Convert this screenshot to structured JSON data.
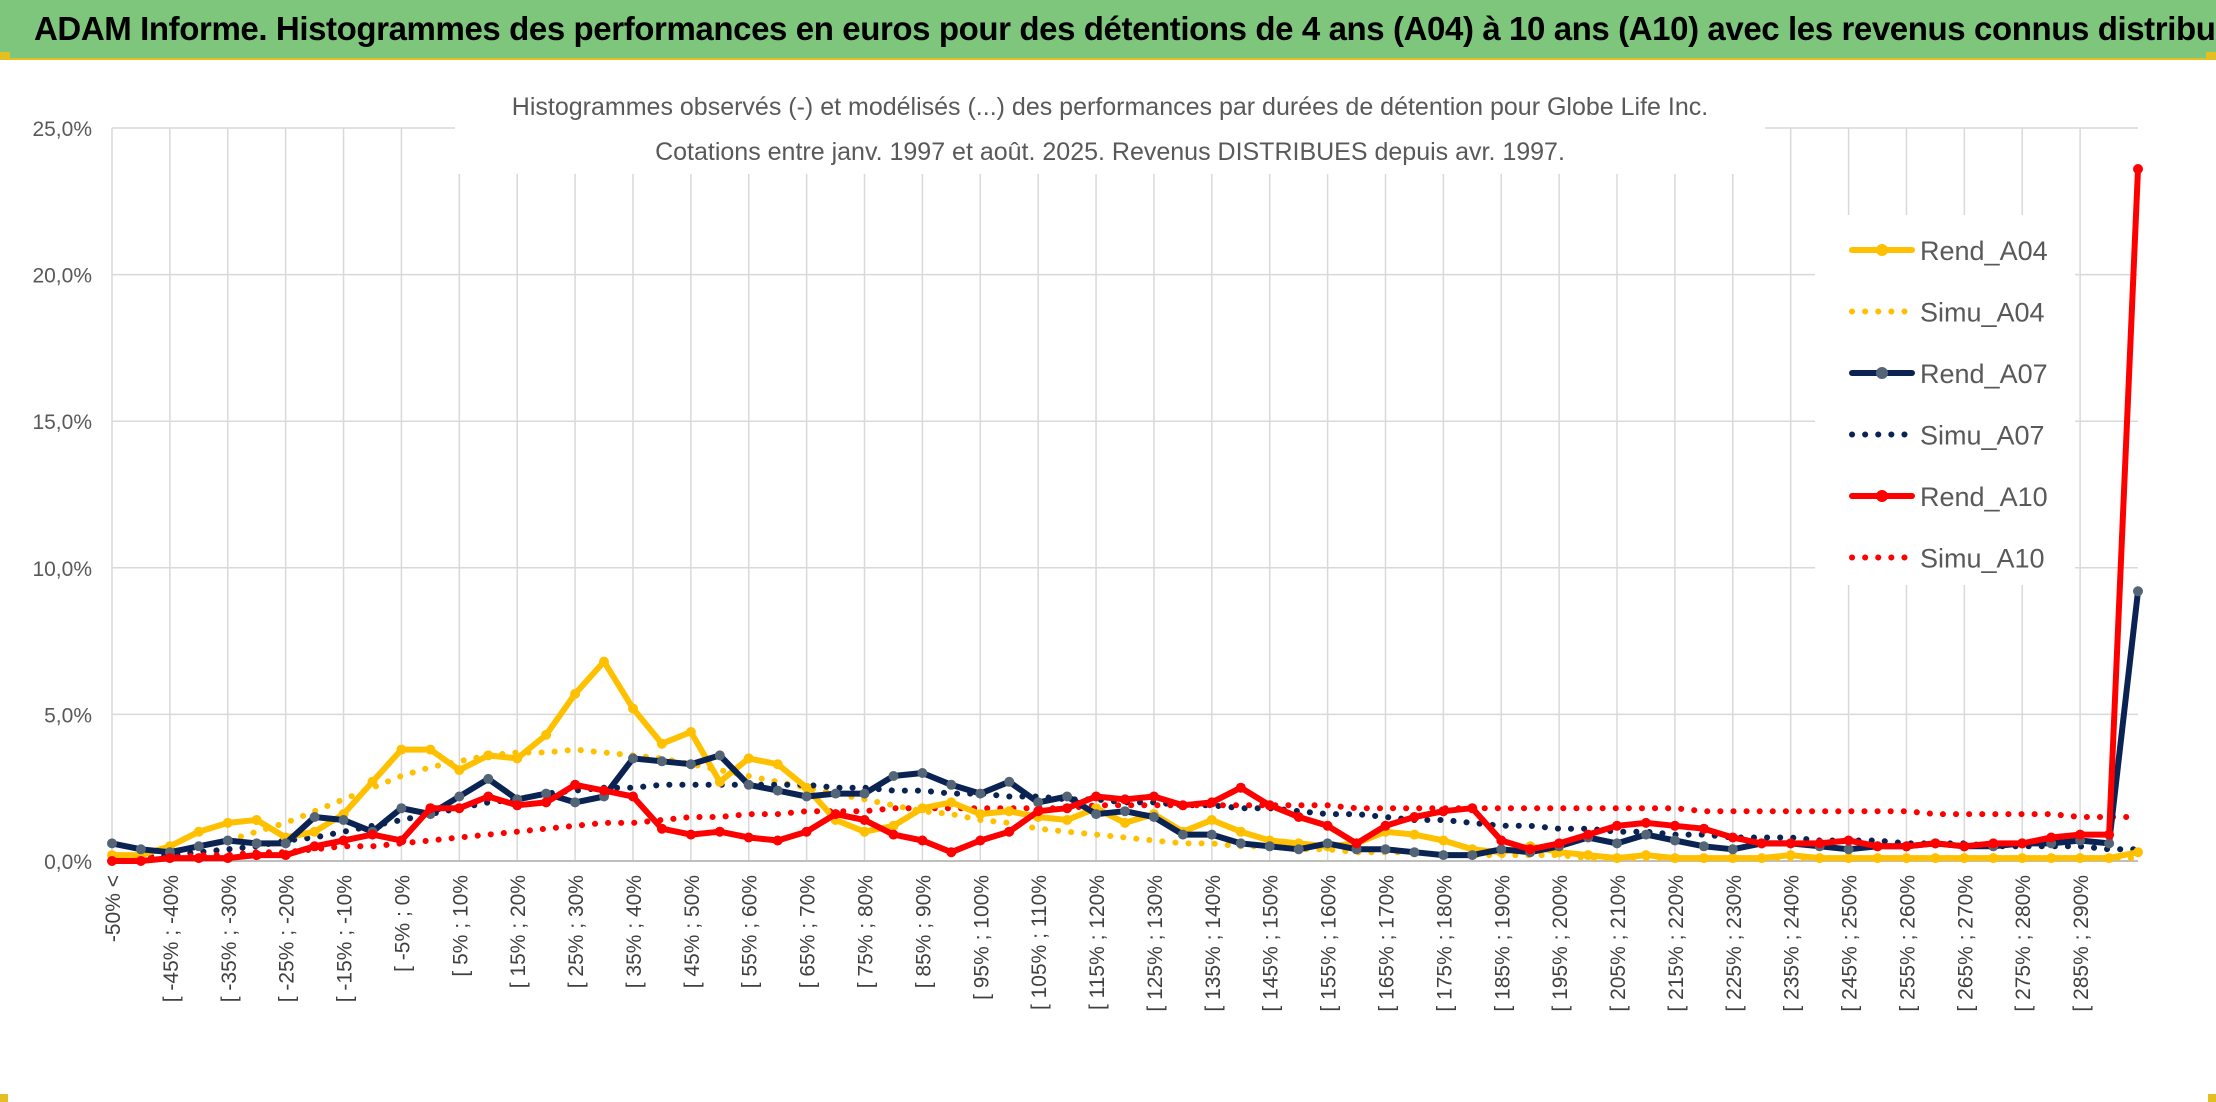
{
  "header": {
    "title": "ADAM Informe. Histogrammes des performances en euros pour des détentions de 4 ans (A04) à 10 ans (A10) avec les revenus connus distribués"
  },
  "colors": {
    "header_bg": "#7dc67b",
    "accent": "#e3bf21",
    "A04": "#ffc000",
    "A07": "#0b2352",
    "A07_marker": "#536577",
    "A10": "#ff0000"
  },
  "chart_data": {
    "type": "line",
    "title": "Histogrammes observés (-) et modélisés (...) des performances par durées de détention pour Globe Life Inc.",
    "subtitle": "Cotations entre janv. 1997 et août. 2025. Revenus DISTRIBUES depuis avr. 1997.",
    "ylim": [
      0,
      25
    ],
    "yticks": [
      "0,0%",
      "5,0%",
      "10,0%",
      "15,0%",
      "20,0%",
      "25,0%"
    ],
    "grid": true,
    "legend_position": "right",
    "category_labels": [
      "-50% <",
      "[ -45% ; -40%",
      "[ -35% ; -30%",
      "[ -25% ; -20%",
      "[ -15% ; -10%",
      "[ -5% ; 0%",
      "[ 5% ; 10%",
      "[ 15% ; 20%",
      "[ 25% ; 30%",
      "[ 35% ; 40%",
      "[ 45% ; 50%",
      "[ 55% ; 60%",
      "[ 65% ; 70%",
      "[ 75% ; 80%",
      "[ 85% ; 90%",
      "[ 95% ; 100%",
      "[ 105% ; 110%",
      "[ 115% ; 120%",
      "[ 125% ; 130%",
      "[ 135% ; 140%",
      "[ 145% ; 150%",
      "[ 155% ; 160%",
      "[ 165% ; 170%",
      "[ 175% ; 180%",
      "[ 185% ; 190%",
      "[ 195% ; 200%",
      "[ 205% ; 210%",
      "[ 215% ; 220%",
      "[ 225% ; 230%",
      "[ 235% ; 240%",
      "[ 245% ; 250%",
      "[ 255% ; 260%",
      "[ 265% ; 270%",
      "[ 275% ; 280%",
      "[ 285% ; 290%"
    ],
    "series": [
      {
        "name": "Rend_A04",
        "style": "solid",
        "color": "#ffc000",
        "marker": true,
        "values": [
          0.2,
          0.2,
          0.5,
          1.0,
          1.3,
          1.4,
          0.8,
          1.0,
          1.6,
          2.7,
          3.8,
          3.8,
          3.1,
          3.6,
          3.5,
          4.3,
          5.7,
          6.8,
          5.2,
          4.0,
          4.4,
          2.7,
          3.5,
          3.3,
          2.5,
          1.4,
          1.0,
          1.2,
          1.8,
          2.0,
          1.6,
          1.7,
          1.5,
          1.4,
          1.8,
          1.3,
          1.6,
          1.0,
          1.4,
          1.0,
          0.7,
          0.6,
          0.5,
          0.6,
          1.0,
          0.9,
          0.7,
          0.4,
          0.3,
          0.5,
          0.3,
          0.2,
          0.1,
          0.2,
          0.1,
          0.1,
          0.1,
          0.1,
          0.2,
          0.1,
          0.1,
          0.1,
          0.1,
          0.1,
          0.1,
          0.1,
          0.1,
          0.1,
          0.1,
          0.1,
          0.3
        ]
      },
      {
        "name": "Simu_A04",
        "style": "dotted",
        "color": "#ffc000",
        "marker": false,
        "values": [
          0.1,
          0.2,
          0.3,
          0.5,
          0.7,
          1.0,
          1.3,
          1.7,
          2.1,
          2.5,
          2.9,
          3.2,
          3.4,
          3.6,
          3.7,
          3.7,
          3.8,
          3.7,
          3.6,
          3.5,
          3.3,
          3.1,
          2.9,
          2.7,
          2.5,
          2.3,
          2.1,
          1.9,
          1.7,
          1.6,
          1.4,
          1.3,
          1.1,
          1.0,
          0.9,
          0.8,
          0.7,
          0.6,
          0.6,
          0.5,
          0.5,
          0.4,
          0.4,
          0.3,
          0.3,
          0.3,
          0.2,
          0.2,
          0.2,
          0.2,
          0.2,
          0.1,
          0.1,
          0.1,
          0.1,
          0.1,
          0.1,
          0.1,
          0.1,
          0.1,
          0.1,
          0.1,
          0.1,
          0.1,
          0.1,
          0.1,
          0.1,
          0.1,
          0.1,
          0.1,
          0.1
        ]
      },
      {
        "name": "Rend_A07",
        "style": "solid",
        "color": "#0b2352",
        "marker": true,
        "values": [
          0.6,
          0.4,
          0.3,
          0.5,
          0.7,
          0.6,
          0.6,
          1.5,
          1.4,
          1.0,
          1.8,
          1.6,
          2.2,
          2.8,
          2.1,
          2.3,
          2.0,
          2.2,
          3.5,
          3.4,
          3.3,
          3.6,
          2.6,
          2.4,
          2.2,
          2.3,
          2.3,
          2.9,
          3.0,
          2.6,
          2.3,
          2.7,
          2.0,
          2.2,
          1.6,
          1.7,
          1.5,
          0.9,
          0.9,
          0.6,
          0.5,
          0.4,
          0.6,
          0.4,
          0.4,
          0.3,
          0.2,
          0.2,
          0.4,
          0.3,
          0.5,
          0.8,
          0.6,
          0.9,
          0.7,
          0.5,
          0.4,
          0.6,
          0.6,
          0.5,
          0.4,
          0.5,
          0.5,
          0.6,
          0.5,
          0.5,
          0.6,
          0.6,
          0.7,
          0.6,
          9.2
        ]
      },
      {
        "name": "Simu_A07",
        "style": "dotted",
        "color": "#0b2352",
        "marker": false,
        "values": [
          0.1,
          0.1,
          0.2,
          0.3,
          0.4,
          0.5,
          0.7,
          0.8,
          1.0,
          1.2,
          1.4,
          1.6,
          1.8,
          2.0,
          2.1,
          2.3,
          2.4,
          2.5,
          2.5,
          2.6,
          2.6,
          2.6,
          2.6,
          2.6,
          2.6,
          2.5,
          2.5,
          2.4,
          2.4,
          2.3,
          2.3,
          2.2,
          2.2,
          2.1,
          2.1,
          2.0,
          2.0,
          1.9,
          1.9,
          1.8,
          1.8,
          1.7,
          1.6,
          1.6,
          1.5,
          1.4,
          1.4,
          1.3,
          1.2,
          1.2,
          1.1,
          1.1,
          1.0,
          1.0,
          0.9,
          0.9,
          0.8,
          0.8,
          0.8,
          0.7,
          0.7,
          0.7,
          0.6,
          0.6,
          0.6,
          0.5,
          0.5,
          0.5,
          0.5,
          0.4,
          0.4
        ]
      },
      {
        "name": "Rend_A10",
        "style": "solid",
        "color": "#ff0000",
        "marker": true,
        "values": [
          0.0,
          0.0,
          0.1,
          0.1,
          0.1,
          0.2,
          0.2,
          0.5,
          0.7,
          0.9,
          0.7,
          1.8,
          1.8,
          2.2,
          1.9,
          2.0,
          2.6,
          2.4,
          2.2,
          1.1,
          0.9,
          1.0,
          0.8,
          0.7,
          1.0,
          1.6,
          1.4,
          0.9,
          0.7,
          0.3,
          0.7,
          1.0,
          1.7,
          1.8,
          2.2,
          2.1,
          2.2,
          1.9,
          2.0,
          2.5,
          1.9,
          1.5,
          1.2,
          0.6,
          1.2,
          1.5,
          1.7,
          1.8,
          0.7,
          0.4,
          0.6,
          0.9,
          1.2,
          1.3,
          1.2,
          1.1,
          0.8,
          0.6,
          0.6,
          0.6,
          0.7,
          0.5,
          0.5,
          0.6,
          0.5,
          0.6,
          0.6,
          0.8,
          0.9,
          0.9,
          23.6
        ]
      },
      {
        "name": "Simu_A10",
        "style": "dotted",
        "color": "#ff0000",
        "marker": false,
        "values": [
          0.1,
          0.1,
          0.1,
          0.2,
          0.2,
          0.3,
          0.3,
          0.4,
          0.5,
          0.5,
          0.6,
          0.7,
          0.8,
          0.9,
          1.0,
          1.1,
          1.2,
          1.3,
          1.3,
          1.4,
          1.5,
          1.5,
          1.6,
          1.6,
          1.7,
          1.7,
          1.7,
          1.8,
          1.8,
          1.8,
          1.8,
          1.8,
          1.8,
          1.8,
          1.9,
          1.9,
          1.9,
          1.9,
          1.9,
          1.9,
          1.9,
          1.9,
          1.9,
          1.8,
          1.8,
          1.8,
          1.8,
          1.8,
          1.8,
          1.8,
          1.8,
          1.8,
          1.8,
          1.8,
          1.8,
          1.7,
          1.7,
          1.7,
          1.7,
          1.7,
          1.7,
          1.7,
          1.7,
          1.6,
          1.6,
          1.6,
          1.6,
          1.6,
          1.5,
          1.5,
          1.5
        ]
      }
    ]
  }
}
